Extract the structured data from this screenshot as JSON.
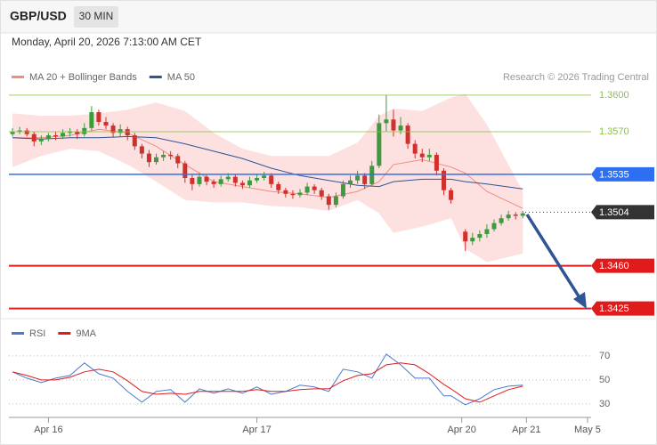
{
  "header": {
    "symbol": "GBP/USD",
    "interval": "30 MIN",
    "datetime": "Monday, April 20, 2026 7:13:00 AM CET"
  },
  "chart_data": [
    {
      "type": "candlestick",
      "credit": "Research © 2026 Trading Central",
      "up_color": "#3d9a3d",
      "down_color": "#d0312d",
      "xlim": [
        -0.5,
        80.5
      ],
      "ylim": [
        1.3413,
        1.3605
      ],
      "candles": [
        [
          1.3568,
          1.3573,
          1.3566,
          1.357
        ],
        [
          1.357,
          1.3574,
          1.3568,
          1.3571
        ],
        [
          1.3571,
          1.3573,
          1.3566,
          1.3568
        ],
        [
          1.3568,
          1.357,
          1.3558,
          1.3562
        ],
        [
          1.3562,
          1.3567,
          1.3559,
          1.3564
        ],
        [
          1.3564,
          1.3569,
          1.3562,
          1.3567
        ],
        [
          1.3567,
          1.357,
          1.3563,
          1.3566
        ],
        [
          1.3566,
          1.3572,
          1.3564,
          1.3569
        ],
        [
          1.3569,
          1.3573,
          1.3566,
          1.357
        ],
        [
          1.357,
          1.3572,
          1.3564,
          1.3568
        ],
        [
          1.3568,
          1.3577,
          1.3566,
          1.3573
        ],
        [
          1.3573,
          1.3591,
          1.3571,
          1.3586
        ],
        [
          1.3586,
          1.3588,
          1.3575,
          1.3578
        ],
        [
          1.3578,
          1.3582,
          1.3572,
          1.3575
        ],
        [
          1.3575,
          1.3577,
          1.3565,
          1.3569
        ],
        [
          1.3569,
          1.3576,
          1.3566,
          1.3572
        ],
        [
          1.3572,
          1.3574,
          1.3563,
          1.3567
        ],
        [
          1.3567,
          1.3569,
          1.3555,
          1.3558
        ],
        [
          1.3558,
          1.356,
          1.3548,
          1.3552
        ],
        [
          1.3552,
          1.3555,
          1.3541,
          1.3545
        ],
        [
          1.3545,
          1.3552,
          1.3543,
          1.3549
        ],
        [
          1.3549,
          1.3554,
          1.3546,
          1.3551
        ],
        [
          1.3551,
          1.3554,
          1.3547,
          1.355
        ],
        [
          1.355,
          1.3552,
          1.354,
          1.3544
        ],
        [
          1.3544,
          1.3546,
          1.3528,
          1.3532
        ],
        [
          1.3532,
          1.3535,
          1.3522,
          1.3527
        ],
        [
          1.3527,
          1.3536,
          1.3525,
          1.3533
        ],
        [
          1.3533,
          1.3535,
          1.3526,
          1.3529
        ],
        [
          1.3529,
          1.3531,
          1.3524,
          1.3527
        ],
        [
          1.3527,
          1.3534,
          1.3525,
          1.3531
        ],
        [
          1.3531,
          1.3536,
          1.3529,
          1.3533
        ],
        [
          1.3533,
          1.3535,
          1.3525,
          1.3528
        ],
        [
          1.3528,
          1.353,
          1.3523,
          1.3526
        ],
        [
          1.3526,
          1.3533,
          1.3524,
          1.353
        ],
        [
          1.353,
          1.3535,
          1.3528,
          1.3532
        ],
        [
          1.3532,
          1.3537,
          1.353,
          1.3534
        ],
        [
          1.3534,
          1.3536,
          1.3524,
          1.3527
        ],
        [
          1.3527,
          1.3529,
          1.3519,
          1.3522
        ],
        [
          1.3522,
          1.3524,
          1.3516,
          1.3519
        ],
        [
          1.3519,
          1.3522,
          1.3515,
          1.3518
        ],
        [
          1.3518,
          1.3523,
          1.3516,
          1.352
        ],
        [
          1.352,
          1.3528,
          1.3518,
          1.3525
        ],
        [
          1.3525,
          1.3527,
          1.3519,
          1.3522
        ],
        [
          1.3522,
          1.3524,
          1.3514,
          1.3517
        ],
        [
          1.3517,
          1.3519,
          1.3506,
          1.351
        ],
        [
          1.351,
          1.352,
          1.3508,
          1.3517
        ],
        [
          1.3517,
          1.353,
          1.3515,
          1.3527
        ],
        [
          1.3527,
          1.3534,
          1.3524,
          1.353
        ],
        [
          1.353,
          1.3538,
          1.3527,
          1.3534
        ],
        [
          1.3534,
          1.3536,
          1.3523,
          1.3527
        ],
        [
          1.3527,
          1.3546,
          1.3525,
          1.3542
        ],
        [
          1.3542,
          1.3584,
          1.354,
          1.3577
        ],
        [
          1.3577,
          1.36,
          1.357,
          1.358
        ],
        [
          1.358,
          1.3588,
          1.3566,
          1.3571
        ],
        [
          1.3571,
          1.3582,
          1.3568,
          1.3575
        ],
        [
          1.3575,
          1.3577,
          1.3556,
          1.356
        ],
        [
          1.356,
          1.3563,
          1.3548,
          1.3552
        ],
        [
          1.3552,
          1.3556,
          1.3545,
          1.3549
        ],
        [
          1.3549,
          1.3556,
          1.3546,
          1.3551
        ],
        [
          1.3551,
          1.3553,
          1.3534,
          1.3538
        ],
        [
          1.3538,
          1.354,
          1.3518,
          1.3522
        ],
        [
          1.3522,
          1.3524,
          1.3511,
          1.3514
        ],
        null,
        [
          1.3488,
          1.349,
          1.3472,
          1.348
        ],
        [
          1.348,
          1.3487,
          1.3477,
          1.3483
        ],
        [
          1.3483,
          1.3489,
          1.348,
          1.3486
        ],
        [
          1.3486,
          1.3494,
          1.3483,
          1.349
        ],
        [
          1.349,
          1.3498,
          1.3488,
          1.3495
        ],
        [
          1.3495,
          1.3502,
          1.3493,
          1.3499
        ],
        [
          1.3499,
          1.3505,
          1.3497,
          1.3502
        ],
        [
          1.3502,
          1.3504,
          1.3498,
          1.3501
        ],
        [
          1.3501,
          1.3505,
          1.3499,
          1.3503
        ]
      ],
      "series": [
        {
          "name": "MA 20 + Bollinger Bands",
          "color": "#f28b82",
          "band_color": "#fde1e1",
          "x": [
            0,
            4,
            8,
            12,
            16,
            20,
            24,
            28,
            32,
            36,
            40,
            44,
            48,
            51,
            53,
            57,
            61,
            63,
            66,
            71
          ],
          "values": [
            1.3565,
            1.3565,
            1.3567,
            1.3572,
            1.3569,
            1.3558,
            1.3543,
            1.3529,
            1.3525,
            1.3521,
            1.3519,
            1.3516,
            1.3521,
            1.3529,
            1.3543,
            1.3547,
            1.3541,
            1.3536,
            1.3521,
            1.3507
          ],
          "upper": [
            1.3585,
            1.3583,
            1.3583,
            1.3585,
            1.3588,
            1.3594,
            1.3587,
            1.3569,
            1.3556,
            1.355,
            1.355,
            1.355,
            1.3561,
            1.3583,
            1.3589,
            1.3587,
            1.3598,
            1.3601,
            1.3576,
            1.3521
          ],
          "lower": [
            1.3541,
            1.355,
            1.3556,
            1.3554,
            1.3543,
            1.3529,
            1.3514,
            1.3512,
            1.3512,
            1.3509,
            1.3508,
            1.3505,
            1.3514,
            1.3503,
            1.3487,
            1.3492,
            1.3499,
            1.3474,
            1.3463,
            1.347
          ]
        },
        {
          "name": "MA 50",
          "color": "#2f5597",
          "x": [
            0,
            4,
            8,
            12,
            16,
            20,
            24,
            28,
            32,
            36,
            40,
            44,
            48,
            51,
            53,
            57,
            61,
            63,
            66,
            71
          ],
          "values": [
            1.3565,
            1.3564,
            1.3565,
            1.3565,
            1.3566,
            1.3565,
            1.356,
            1.3554,
            1.3548,
            1.354,
            1.3534,
            1.353,
            1.3526,
            1.3525,
            1.3529,
            1.3531,
            1.3531,
            1.3529,
            1.3527,
            1.3523
          ]
        }
      ],
      "levels": [
        {
          "value": 1.36,
          "label": "1.3600",
          "color": "#8bc34a",
          "style": "thin"
        },
        {
          "value": 1.357,
          "label": "1.3570",
          "color": "#8bc34a",
          "style": "thin"
        },
        {
          "value": 1.3535,
          "label": "1.3535",
          "color": "#2e6ff2",
          "style": "line"
        },
        {
          "value": 1.3504,
          "label": "1.3504",
          "color": "#333333",
          "style": "dotted"
        },
        {
          "value": 1.346,
          "label": "1.3460",
          "color": "#e01b1b",
          "style": "thick"
        },
        {
          "value": 1.3425,
          "label": "1.3425",
          "color": "#e01b1b",
          "style": "thick"
        }
      ]
    },
    {
      "type": "line",
      "xlim": [
        -0.5,
        80.5
      ],
      "xticks": [
        {
          "value": 5,
          "label": "Apr 16"
        },
        {
          "value": 34,
          "label": "Apr 17"
        },
        {
          "value": 62.5,
          "label": "Apr 20"
        },
        {
          "value": 71.5,
          "label": "Apr 21"
        },
        {
          "value": 80,
          "label": "May 5"
        }
      ],
      "ylim": [
        24,
        81
      ],
      "yticks": [
        70,
        50,
        30
      ],
      "x": [
        0,
        2,
        4,
        6,
        8,
        10,
        12,
        14,
        16,
        18,
        20,
        22,
        24,
        26,
        28,
        30,
        32,
        34,
        36,
        38,
        40,
        42,
        44,
        46,
        48,
        50,
        52,
        54,
        56,
        58,
        60,
        61,
        63,
        65,
        67,
        69,
        71
      ],
      "series": [
        {
          "name": "RSI",
          "color": "#4a78d0",
          "values": [
            56.7,
            51.5,
            47.8,
            51.5,
            53.7,
            64.1,
            55.2,
            51.5,
            40.4,
            31.5,
            40.4,
            41.9,
            31.5,
            42.6,
            38.9,
            42.6,
            38.9,
            44.1,
            38.1,
            40.4,
            45.6,
            44.1,
            40.4,
            58.9,
            56.7,
            51.5,
            71.5,
            62.6,
            51.5,
            51.5,
            36.7,
            36.7,
            29.3,
            34.4,
            41.9,
            44.8,
            45.6
          ]
        },
        {
          "name": "9MA",
          "color": "#e01b1b",
          "values": [
            56.7,
            53.7,
            50.0,
            50.0,
            52.2,
            56.7,
            58.9,
            56.7,
            49.3,
            40.4,
            38.1,
            38.9,
            38.1,
            40.4,
            40.4,
            40.4,
            40.4,
            41.9,
            40.4,
            40.4,
            41.9,
            42.6,
            42.6,
            49.3,
            53.7,
            55.2,
            62.6,
            64.1,
            62.6,
            55.2,
            46.3,
            42.6,
            34.4,
            31.5,
            36.7,
            41.9,
            44.8
          ]
        }
      ]
    }
  ]
}
